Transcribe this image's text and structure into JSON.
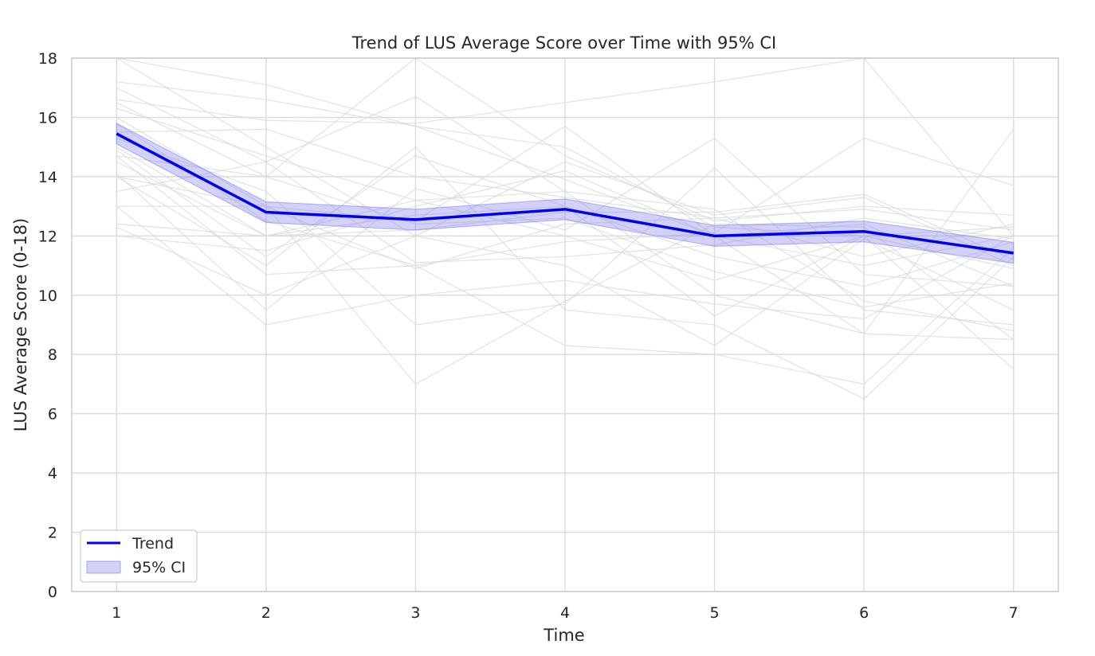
{
  "chart_data": {
    "type": "line",
    "title": "Trend of LUS Average Score over Time with 95% CI",
    "xlabel": "Time",
    "ylabel": "LUS Average Score (0-18)",
    "x": [
      1,
      2,
      3,
      4,
      5,
      6,
      7
    ],
    "x_ticks": [
      "1",
      "2",
      "3",
      "4",
      "5",
      "6",
      "7"
    ],
    "y_ticks": [
      "0",
      "2",
      "4",
      "6",
      "8",
      "10",
      "12",
      "14",
      "16",
      "18"
    ],
    "xlim": [
      0.7,
      7.3
    ],
    "ylim": [
      0,
      18
    ],
    "grid": true,
    "legend_position": "lower-left",
    "series": [
      {
        "name": "Trend",
        "color": "#0000ee",
        "values": [
          15.45,
          12.8,
          12.55,
          12.9,
          12.0,
          12.15,
          11.42
        ]
      }
    ],
    "confidence_band": {
      "name": "95% CI",
      "color": "#7b7bee",
      "lower": [
        15.1,
        12.45,
        12.2,
        12.55,
        11.65,
        11.8,
        11.08
      ],
      "upper": [
        15.8,
        13.15,
        12.9,
        13.25,
        12.35,
        12.5,
        11.78
      ]
    },
    "individual_trajectories": {
      "color": "#d9d9d9",
      "lines": [
        [
          18.0,
          17.1,
          15.7,
          15.0,
          12.3,
          12.0,
          12.3
        ],
        [
          18.0,
          15.0,
          12.0,
          14.5,
          12.7,
          13.3,
          11.0
        ],
        [
          17.2,
          16.6,
          15.7,
          13.9,
          12.0,
          12.4,
          10.3
        ],
        [
          17.0,
          14.5,
          16.7,
          13.5,
          12.9,
          9.8,
          8.8
        ],
        [
          16.6,
          15.9,
          15.8,
          16.5,
          17.2,
          18.0,
          12.0
        ],
        [
          16.5,
          14.0,
          18.0,
          14.7,
          12.5,
          13.0,
          12.7
        ],
        [
          16.3,
          14.7,
          13.2,
          12.0,
          10.5,
          12.0,
          10.9
        ],
        [
          16.0,
          13.0,
          10.9,
          12.4,
          12.6,
          11.3,
          12.4
        ],
        [
          15.8,
          12.5,
          11.0,
          11.8,
          12.1,
          15.3,
          13.7
        ],
        [
          15.3,
          13.5,
          9.0,
          9.7,
          14.3,
          9.5,
          9.0
        ],
        [
          15.0,
          12.0,
          12.7,
          13.0,
          11.3,
          10.3,
          11.8
        ],
        [
          14.9,
          11.3,
          14.7,
          13.0,
          9.3,
          12.0,
          7.5
        ],
        [
          14.7,
          10.7,
          11.0,
          8.3,
          8.0,
          7.0,
          11.6
        ],
        [
          14.5,
          12.0,
          12.2,
          12.8,
          12.8,
          13.4,
          11.2
        ],
        [
          14.1,
          9.5,
          13.6,
          12.2,
          15.3,
          10.7,
          10.3
        ],
        [
          14.0,
          11.0,
          15.0,
          9.5,
          9.0,
          6.5,
          11.3
        ],
        [
          14.0,
          13.0,
          12.5,
          15.7,
          12.0,
          8.7,
          15.6
        ],
        [
          13.5,
          14.5,
          11.1,
          11.3,
          11.7,
          12.6,
          11.9
        ],
        [
          13.0,
          13.0,
          7.0,
          9.8,
          12.4,
          12.3,
          8.5
        ],
        [
          13.0,
          9.0,
          10.0,
          10.5,
          9.7,
          9.2,
          12.0
        ],
        [
          12.4,
          12.0,
          13.2,
          13.5,
          10.0,
          8.7,
          8.5
        ],
        [
          12.3,
          10.0,
          12.0,
          11.0,
          8.3,
          11.9,
          9.5
        ],
        [
          12.0,
          11.5,
          13.0,
          14.2,
          12.0,
          11.0,
          12.0
        ],
        [
          14.7,
          14.0,
          12.4,
          12.6,
          10.8,
          9.6,
          10.4
        ],
        [
          15.5,
          15.6,
          14.0,
          13.3,
          12.6,
          12.9,
          12.2
        ]
      ]
    }
  }
}
